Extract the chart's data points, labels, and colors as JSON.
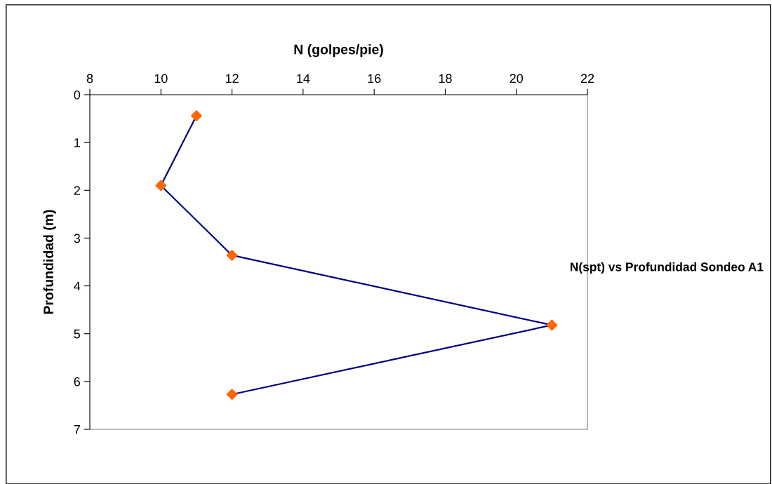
{
  "chart_data": {
    "type": "line",
    "title": "N(spt) vs Profundidad Sondeo A1",
    "xlabel": "N (golpes/pie)",
    "ylabel": "Profundidad (m)",
    "x": [
      11,
      10,
      12,
      21,
      12
    ],
    "series": [
      {
        "color": "#000080",
        "colors": [
          "#ff6600",
          "#ff6600",
          "#ff6600",
          "#ff6600",
          "#ff6600"
        ],
        "values": [
          0.44,
          1.9,
          3.36,
          4.82,
          6.27
        ]
      }
    ],
    "marker": "diamond",
    "line_style": "solid",
    "xlim": [
      8,
      22
    ],
    "xticks": [
      8,
      10,
      12,
      14,
      16,
      18,
      20,
      22
    ],
    "ylim": [
      7,
      0
    ],
    "yticks": [
      0,
      1,
      2,
      3,
      4,
      5,
      6,
      7
    ],
    "grid": false,
    "legend": false
  }
}
